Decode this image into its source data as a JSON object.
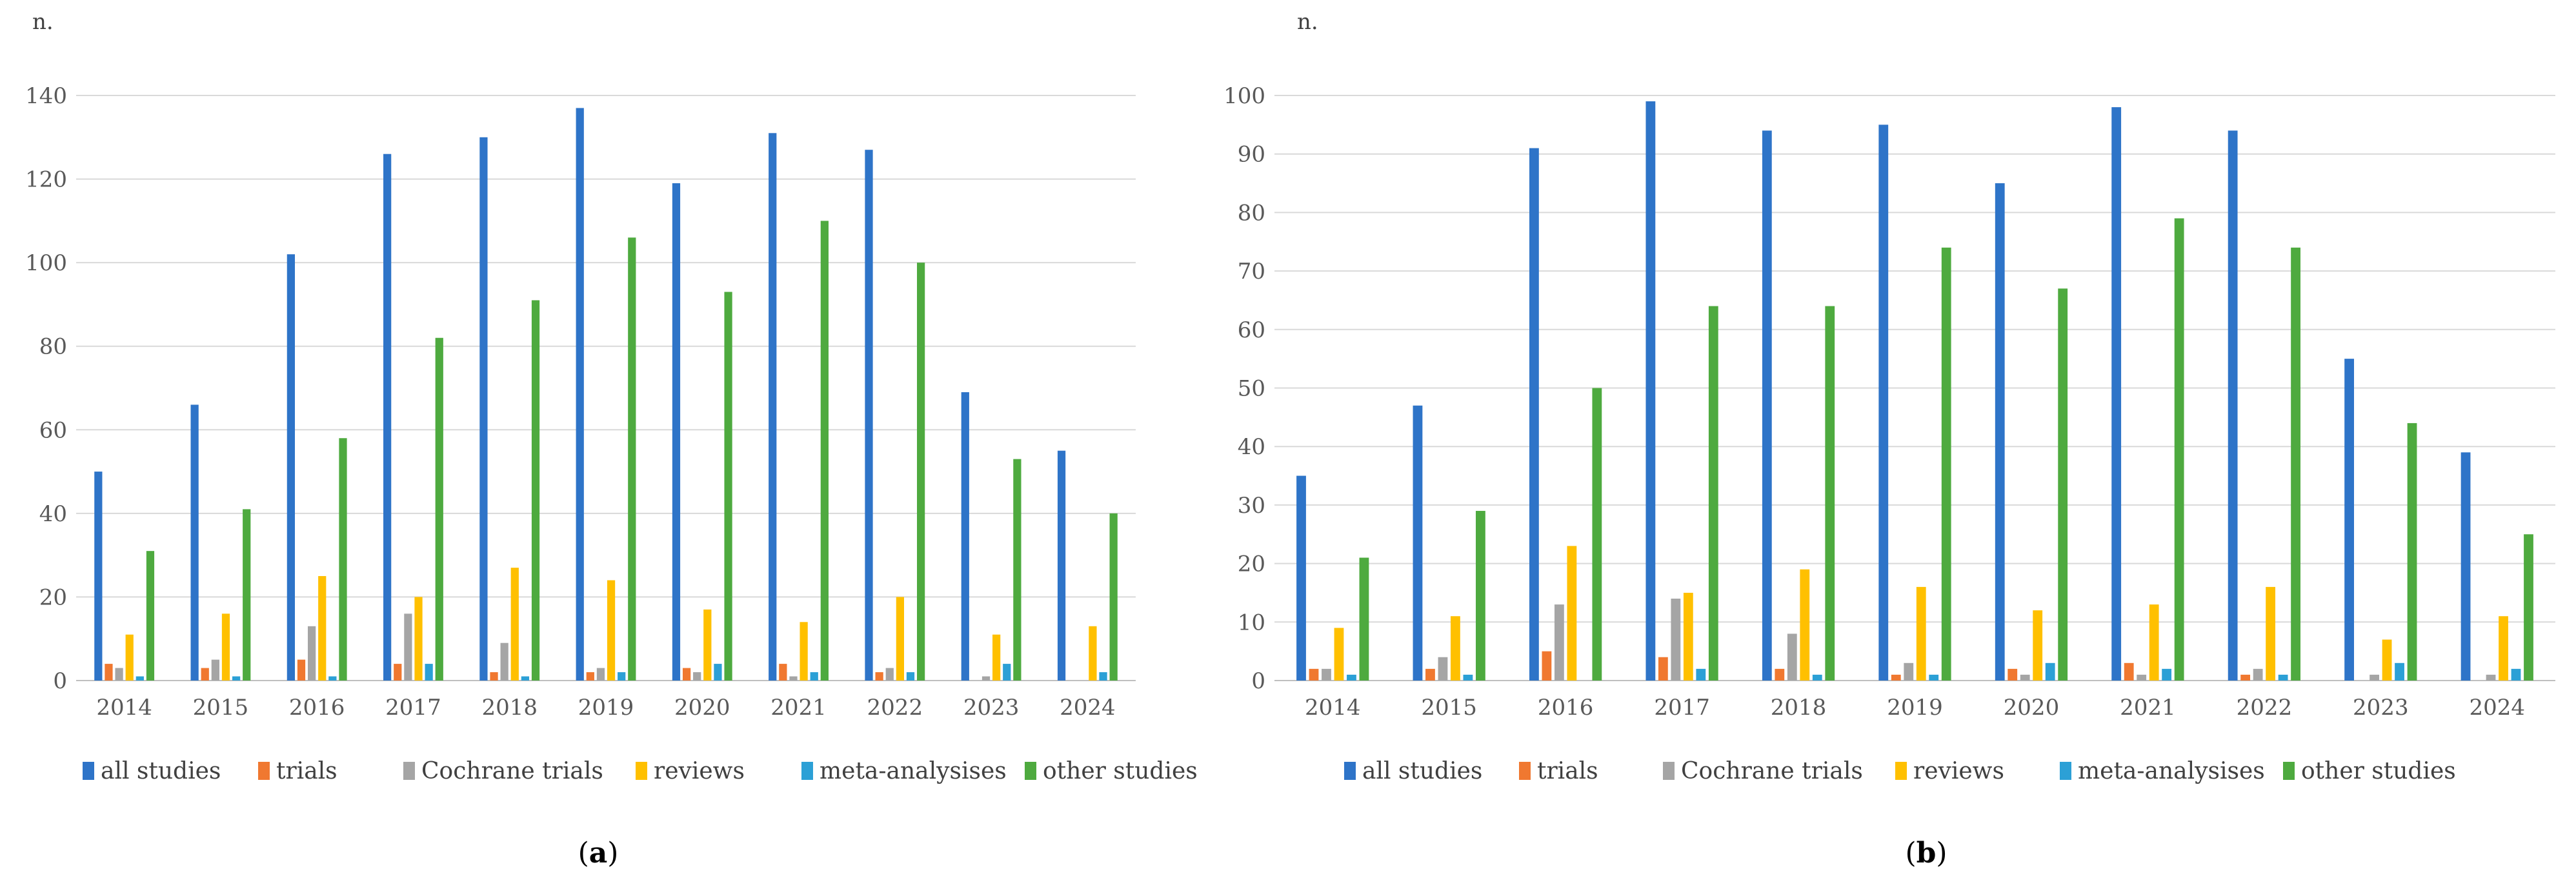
{
  "charts": [
    {
      "type": "bar",
      "unit_label": "n.",
      "caption_open": "(",
      "caption_letter": "a",
      "caption_close": ")",
      "ylim": [
        0,
        140
      ],
      "yticks": [
        0,
        20,
        40,
        60,
        80,
        100,
        120,
        140
      ],
      "categories": [
        "2014",
        "2015",
        "2016",
        "2017",
        "2018",
        "2019",
        "2020",
        "2021",
        "2022",
        "2023",
        "2024"
      ],
      "series": [
        {
          "name": "all studies",
          "color": "#2e74c8",
          "values": [
            50,
            66,
            102,
            126,
            130,
            137,
            119,
            131,
            127,
            69,
            55
          ]
        },
        {
          "name": "trials",
          "color": "#f07830",
          "values": [
            4,
            3,
            5,
            4,
            2,
            2,
            3,
            4,
            2,
            0,
            0
          ]
        },
        {
          "name": "Cochrane trials",
          "color": "#a5a5a5",
          "values": [
            3,
            5,
            13,
            16,
            9,
            3,
            2,
            1,
            3,
            1,
            0
          ]
        },
        {
          "name": "reviews",
          "color": "#ffc000",
          "values": [
            11,
            16,
            25,
            20,
            27,
            24,
            17,
            14,
            20,
            11,
            13
          ]
        },
        {
          "name": "meta-analysises",
          "color": "#2ca0d6",
          "values": [
            1,
            1,
            1,
            4,
            1,
            2,
            4,
            2,
            2,
            4,
            2
          ]
        },
        {
          "name": "other studies",
          "color": "#4eaa3f",
          "values": [
            31,
            41,
            58,
            82,
            91,
            106,
            93,
            110,
            100,
            53,
            40
          ]
        }
      ]
    },
    {
      "type": "bar",
      "unit_label": "n.",
      "caption_open": "(",
      "caption_letter": "b",
      "caption_close": ")",
      "ylim": [
        0,
        100
      ],
      "yticks": [
        0,
        10,
        20,
        30,
        40,
        50,
        60,
        70,
        80,
        90,
        100
      ],
      "categories": [
        "2014",
        "2015",
        "2016",
        "2017",
        "2018",
        "2019",
        "2020",
        "2021",
        "2022",
        "2023",
        "2024"
      ],
      "series": [
        {
          "name": "all studies",
          "color": "#2e74c8",
          "values": [
            35,
            47,
            91,
            99,
            94,
            95,
            85,
            98,
            94,
            55,
            39
          ]
        },
        {
          "name": "trials",
          "color": "#f07830",
          "values": [
            2,
            2,
            5,
            4,
            2,
            1,
            2,
            3,
            1,
            0,
            0
          ]
        },
        {
          "name": "Cochrane trials",
          "color": "#a5a5a5",
          "values": [
            2,
            4,
            13,
            14,
            8,
            3,
            1,
            1,
            2,
            1,
            1
          ]
        },
        {
          "name": "reviews",
          "color": "#ffc000",
          "values": [
            9,
            11,
            23,
            15,
            19,
            16,
            12,
            13,
            16,
            7,
            11
          ]
        },
        {
          "name": "meta-analysises",
          "color": "#2ca0d6",
          "values": [
            1,
            1,
            0,
            2,
            1,
            1,
            3,
            2,
            1,
            3,
            2
          ]
        },
        {
          "name": "other studies",
          "color": "#4eaa3f",
          "values": [
            21,
            29,
            50,
            64,
            64,
            74,
            67,
            79,
            74,
            44,
            25
          ]
        }
      ]
    }
  ]
}
